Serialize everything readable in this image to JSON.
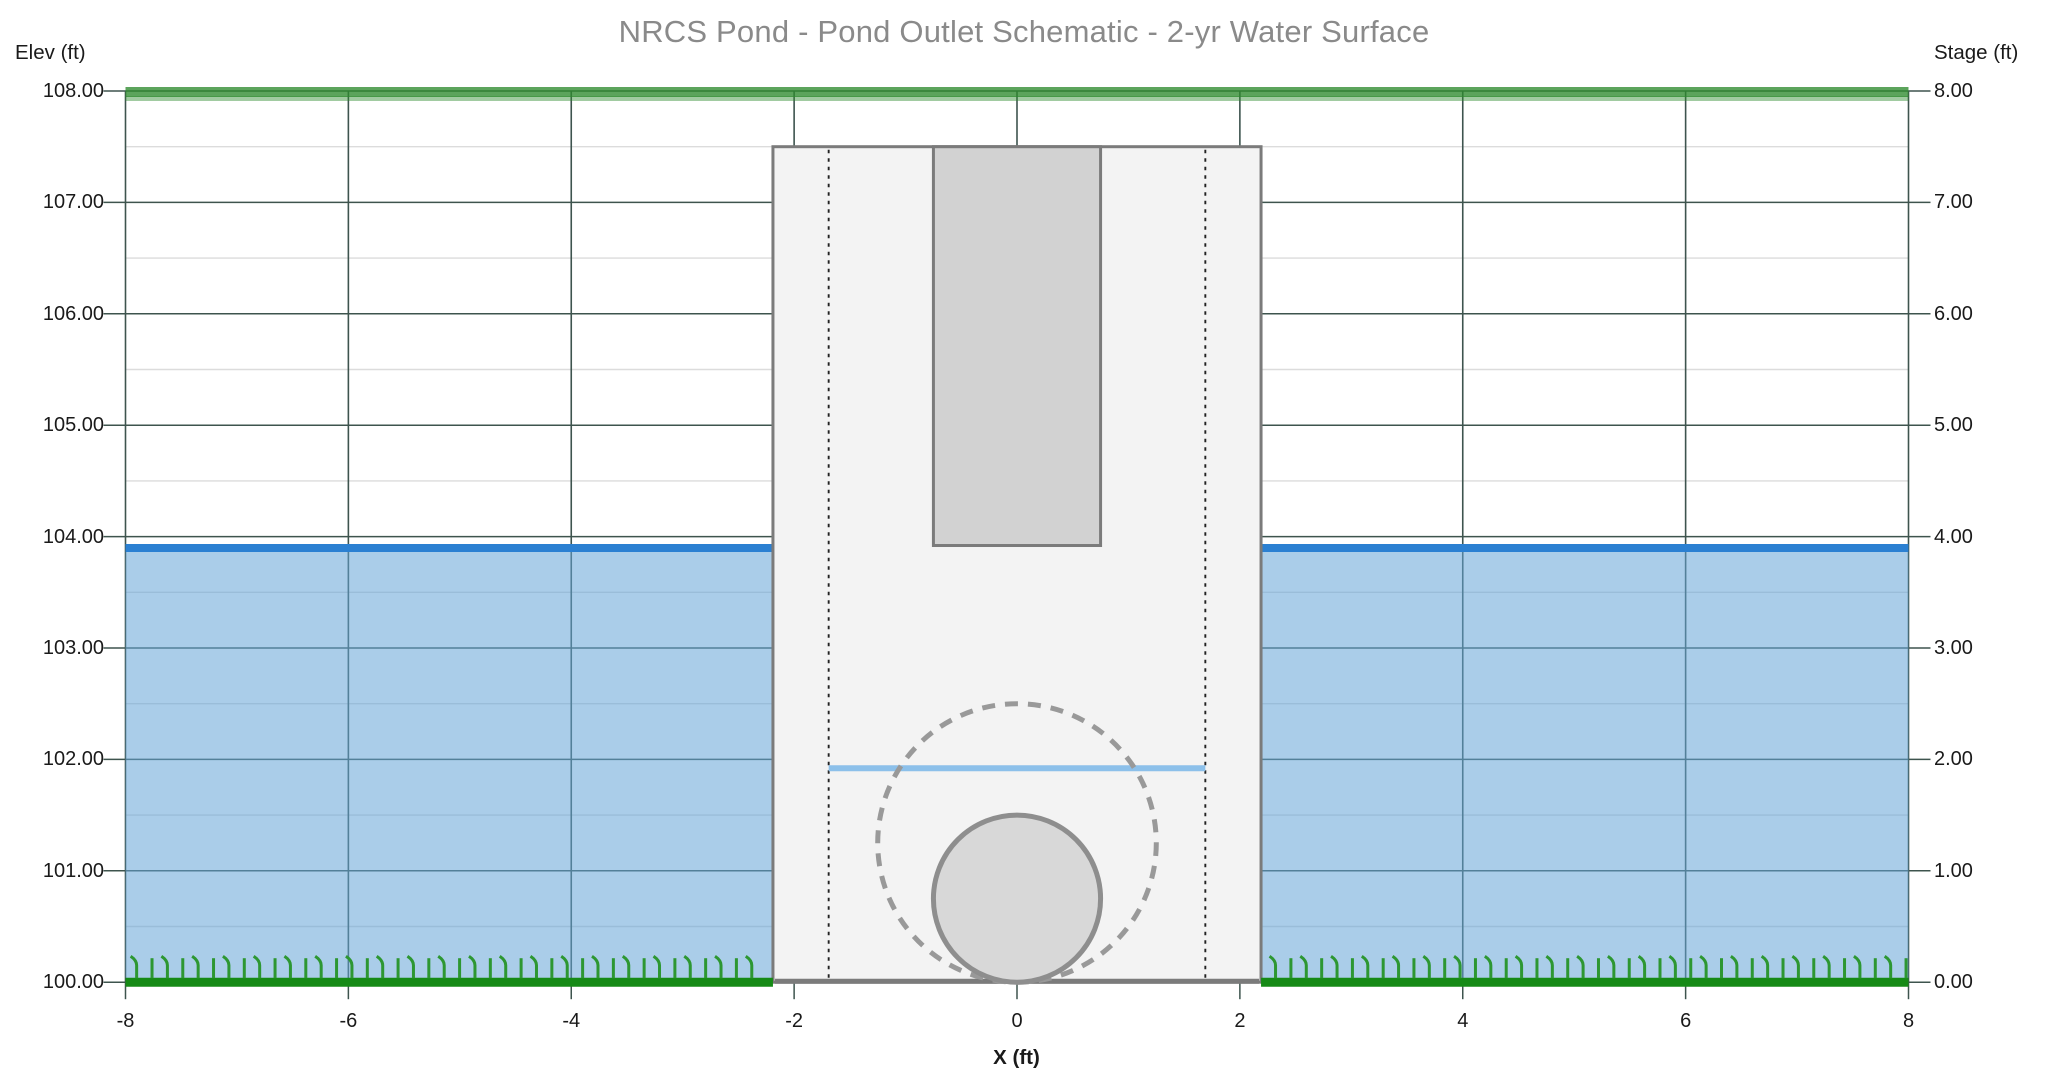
{
  "title": "NRCS Pond - Pond Outlet Schematic - 2-yr Water Surface",
  "axes": {
    "left": {
      "title": "Elev (ft)",
      "ticks": [
        {
          "label": "108.00",
          "elev": 108
        },
        {
          "label": "107.00",
          "elev": 107
        },
        {
          "label": "106.00",
          "elev": 106
        },
        {
          "label": "105.00",
          "elev": 105
        },
        {
          "label": "104.00",
          "elev": 104
        },
        {
          "label": "103.00",
          "elev": 103
        },
        {
          "label": "102.00",
          "elev": 102
        },
        {
          "label": "101.00",
          "elev": 101
        },
        {
          "label": "100.00",
          "elev": 100
        }
      ]
    },
    "right": {
      "title": "Stage (ft)",
      "ticks": [
        {
          "label": "8.00",
          "elev": 108
        },
        {
          "label": "7.00",
          "elev": 107
        },
        {
          "label": "6.00",
          "elev": 106
        },
        {
          "label": "5.00",
          "elev": 105
        },
        {
          "label": "4.00",
          "elev": 104
        },
        {
          "label": "3.00",
          "elev": 103
        },
        {
          "label": "2.00",
          "elev": 102
        },
        {
          "label": "1.00",
          "elev": 101
        },
        {
          "label": "0.00",
          "elev": 100
        }
      ]
    },
    "bottom": {
      "title": "X (ft)",
      "ticks": [
        {
          "label": "-8",
          "x": -8
        },
        {
          "label": "-6",
          "x": -6
        },
        {
          "label": "-4",
          "x": -4
        },
        {
          "label": "-2",
          "x": -2
        },
        {
          "label": "0",
          "x": 0
        },
        {
          "label": "2",
          "x": 2
        },
        {
          "label": "4",
          "x": 4
        },
        {
          "label": "6",
          "x": 6
        },
        {
          "label": "8",
          "x": 8
        }
      ]
    }
  },
  "chart_data": {
    "type": "schematic",
    "title": "NRCS Pond - Pond Outlet Schematic - 2-yr Water Surface",
    "xlabel": "X (ft)",
    "ylabel_left": "Elev (ft)",
    "ylabel_right": "Stage (ft)",
    "xlim": [
      -8,
      8
    ],
    "elev_lim": [
      100,
      108
    ],
    "stage_lim": [
      0,
      8
    ],
    "grid": {
      "x_major_lines": [
        -8,
        -6,
        -4,
        -2,
        0,
        2,
        4,
        6,
        8
      ],
      "elev_major_lines": [
        100,
        101,
        102,
        103,
        104,
        105,
        106,
        107,
        108
      ],
      "elev_minor_lines": [
        100.5,
        101.5,
        102.5,
        103.5,
        104.5,
        105.5,
        106.5,
        107.5
      ]
    },
    "elements": {
      "top_of_dam_elevation": 108.0,
      "ground_elevation": 100.0,
      "water_surface_elevation": 103.88,
      "water_regions_x": [
        [
          -8,
          -2.19
        ],
        [
          2.19,
          8
        ]
      ],
      "riser_box": {
        "x_left": -2.19,
        "x_right": 2.19,
        "top_elev": 107.5,
        "base_elev": 100.0
      },
      "riser_inner_wall_x": [
        -1.69,
        1.69
      ],
      "riser_cap": {
        "x_left": -0.75,
        "x_right": 0.75,
        "top_elev": 107.5,
        "bottom_elev": 103.92
      },
      "internal_water_elevation": 101.92,
      "internal_water_span_x": [
        -1.69,
        1.69
      ],
      "barrel_pipe_circle": {
        "cx": 0,
        "cy_elev": 100.75,
        "r": 0.75
      },
      "dashed_circle": {
        "cx": 0,
        "cy_elev": 101.25,
        "r": 1.25
      },
      "grass": {
        "spacing": 0.138,
        "height_ft": 0.2
      }
    },
    "colors": {
      "grid_major": "#3E544E",
      "grid_minor": "#DCDCDC",
      "water_fill": "#64A4D7",
      "water_line": "#2B80D2",
      "inner_water_line": "#8CC0EA",
      "riser_fill": "#F3F3F3",
      "structure_stroke": "#7B7B7B",
      "cap_fill": "#D2D2D2",
      "pipe_fill": "#D8D8D8",
      "pipe_stroke": "#8E8E8E",
      "dashed_circle": "#999999",
      "dotted_wall": "#222222",
      "berm_green": "#2E8B2E",
      "ground_green": "#168A16",
      "grass_green": "#2D9732",
      "title_color": "#8A8A8A",
      "text_color": "#1A1A1A"
    },
    "legend": null
  }
}
